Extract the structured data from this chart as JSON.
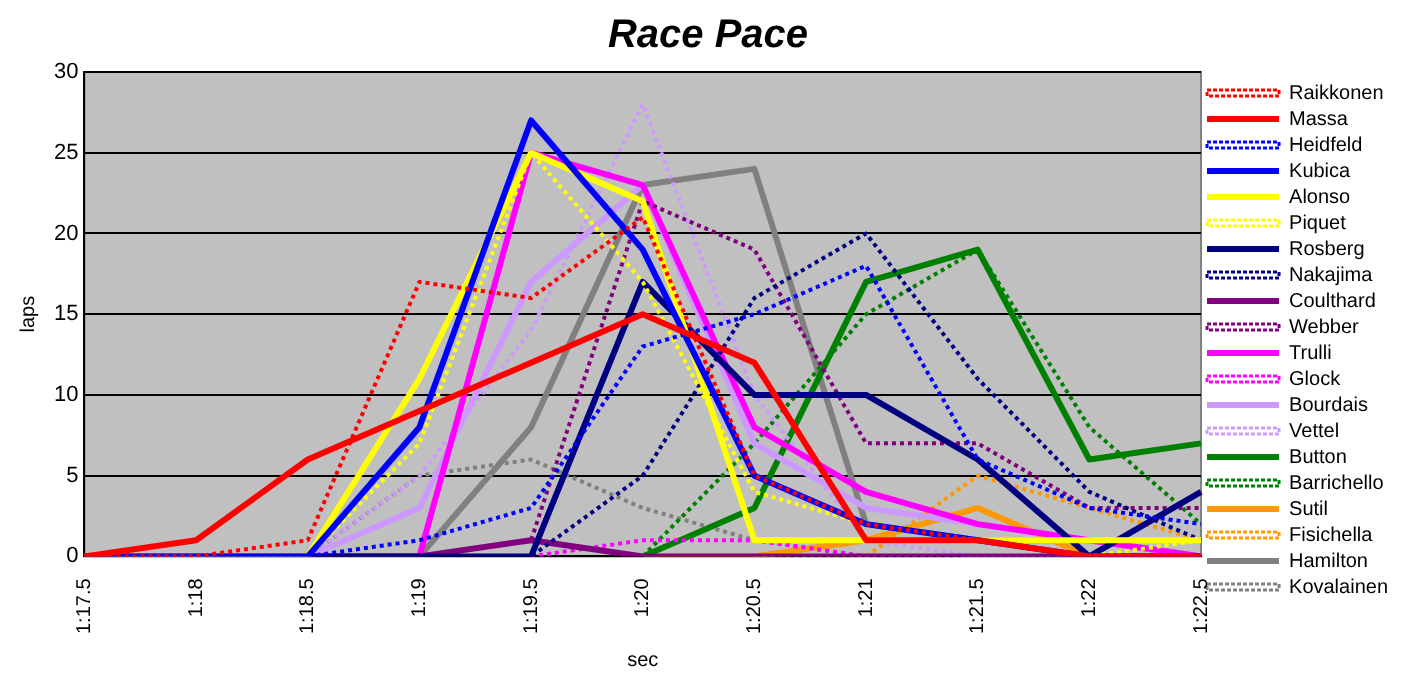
{
  "chart_data": {
    "type": "line",
    "title": "Race Pace",
    "xlabel": "sec",
    "ylabel": "laps",
    "categories": [
      "1:17.5",
      "1:18",
      "1:18.5",
      "1:19",
      "1:19.5",
      "1:20",
      "1:20.5",
      "1:21",
      "1:21.5",
      "1:22",
      "1:22.5"
    ],
    "ylim": [
      0,
      30
    ],
    "yticks": [
      0,
      5,
      10,
      15,
      20,
      25,
      30
    ],
    "grid": "y",
    "legend": "right",
    "marker": "none",
    "series": [
      {
        "name": "Raikkonen",
        "color": "#ff0000",
        "line_style": "dotted",
        "values": [
          0,
          0,
          1,
          17,
          16,
          21,
          5,
          2,
          1,
          0,
          0
        ]
      },
      {
        "name": "Massa",
        "color": "#ff0000",
        "line_style": "solid",
        "values": [
          0,
          1,
          6,
          9,
          12,
          15,
          12,
          1,
          1,
          0,
          0
        ]
      },
      {
        "name": "Heidfeld",
        "color": "#0000ff",
        "line_style": "dotted",
        "values": [
          0,
          0,
          0,
          1,
          3,
          13,
          15,
          18,
          6,
          3,
          2
        ]
      },
      {
        "name": "Kubica",
        "color": "#0000ff",
        "line_style": "solid",
        "values": [
          0,
          0,
          0,
          8,
          27,
          19,
          5,
          2,
          1,
          0,
          0
        ]
      },
      {
        "name": "Alonso",
        "color": "#ffff00",
        "line_style": "solid",
        "values": [
          0,
          0,
          0,
          11,
          25,
          22,
          1,
          1,
          1,
          1,
          1
        ]
      },
      {
        "name": "Piquet",
        "color": "#ffff00",
        "line_style": "dotted",
        "values": [
          0,
          0,
          0,
          7,
          25,
          17,
          4,
          2,
          1,
          0,
          1
        ]
      },
      {
        "name": "Rosberg",
        "color": "#000080",
        "line_style": "solid",
        "values": [
          0,
          0,
          0,
          0,
          0,
          17,
          10,
          10,
          6,
          0,
          4
        ]
      },
      {
        "name": "Nakajima",
        "color": "#000080",
        "line_style": "dotted",
        "values": [
          0,
          0,
          0,
          0,
          0,
          5,
          16,
          20,
          11,
          4,
          1
        ]
      },
      {
        "name": "Coulthard",
        "color": "#800080",
        "line_style": "solid",
        "values": [
          0,
          0,
          0,
          0,
          1,
          0,
          0,
          0,
          0,
          0,
          0
        ]
      },
      {
        "name": "Webber",
        "color": "#800080",
        "line_style": "dotted",
        "values": [
          0,
          0,
          0,
          0,
          1,
          22,
          19,
          7,
          7,
          3,
          3
        ]
      },
      {
        "name": "Trulli",
        "color": "#ff00ff",
        "line_style": "solid",
        "values": [
          null,
          null,
          null,
          0,
          25,
          23,
          8,
          4,
          2,
          1,
          0
        ]
      },
      {
        "name": "Glock",
        "color": "#ff00ff",
        "line_style": "dotted",
        "values": [
          null,
          null,
          null,
          null,
          0,
          1,
          1,
          0,
          0,
          0,
          0
        ]
      },
      {
        "name": "Bourdais",
        "color": "#cc99ff",
        "line_style": "solid",
        "values": [
          0,
          0,
          0,
          3,
          17,
          23,
          7,
          3,
          2,
          1,
          0
        ]
      },
      {
        "name": "Vettel",
        "color": "#cc99ff",
        "line_style": "dotted",
        "values": [
          0,
          0,
          0,
          5,
          14,
          28,
          10,
          1,
          0,
          0,
          0
        ]
      },
      {
        "name": "Button",
        "color": "#008000",
        "line_style": "solid",
        "values": [
          null,
          null,
          null,
          null,
          null,
          0,
          3,
          17,
          19,
          6,
          7
        ]
      },
      {
        "name": "Barrichello",
        "color": "#008000",
        "line_style": "dotted",
        "values": [
          null,
          null,
          null,
          null,
          null,
          0,
          7,
          15,
          19,
          8,
          2
        ]
      },
      {
        "name": "Sutil",
        "color": "#ff9900",
        "line_style": "solid",
        "values": [
          null,
          null,
          null,
          null,
          null,
          0,
          0,
          1,
          3,
          0,
          0
        ]
      },
      {
        "name": "Fisichella",
        "color": "#ff9900",
        "line_style": "dotted",
        "values": [
          null,
          null,
          null,
          null,
          null,
          null,
          0,
          0,
          5,
          3,
          1
        ]
      },
      {
        "name": "Hamilton",
        "color": "#808080",
        "line_style": "solid",
        "values": [
          0,
          0,
          0,
          0,
          8,
          23,
          24,
          2,
          1,
          1,
          0
        ]
      },
      {
        "name": "Kovalainen",
        "color": "#808080",
        "line_style": "dotted",
        "values": [
          null,
          null,
          0,
          5,
          6,
          3,
          1,
          0,
          0,
          0,
          0
        ]
      }
    ]
  }
}
